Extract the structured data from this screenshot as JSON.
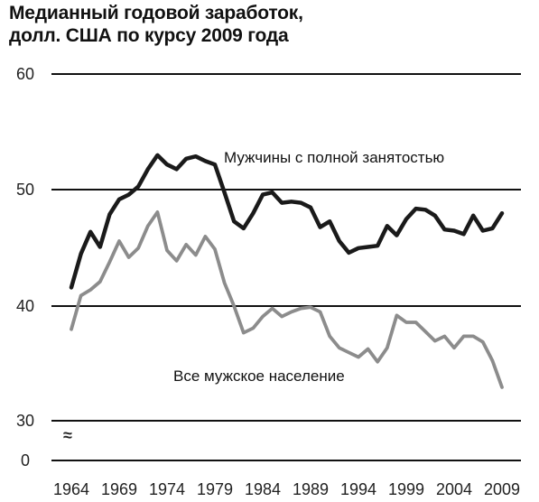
{
  "chart_data": {
    "type": "line",
    "title_line1": "Медианный годовой заработок,",
    "title_line2": "долл. США по курсу 2009 года",
    "xlabel": "",
    "ylabel": "",
    "xlim": [
      1964,
      2009
    ],
    "y_tick_labels": [
      "60",
      "50",
      "40",
      "30",
      "0"
    ],
    "x_tick_labels": [
      "1964",
      "1969",
      "1974",
      "1979",
      "1984",
      "1989",
      "1994",
      "1999",
      "2004",
      "2009"
    ],
    "axis_break_mark": "≈",
    "grid": true,
    "series": [
      {
        "name": "Мужчины с полной занятостью",
        "color": "#1a1a1a",
        "x": [
          1964,
          1965,
          1966,
          1967,
          1968,
          1969,
          1970,
          1971,
          1972,
          1973,
          1974,
          1975,
          1976,
          1977,
          1978,
          1979,
          1980,
          1981,
          1982,
          1983,
          1984,
          1985,
          1986,
          1987,
          1988,
          1989,
          1990,
          1991,
          1992,
          1993,
          1994,
          1995,
          1996,
          1997,
          1998,
          1999,
          2000,
          2001,
          2002,
          2003,
          2004,
          2005,
          2006,
          2007,
          2008,
          2009
        ],
        "values": [
          41.6,
          44.5,
          46.4,
          45.1,
          47.9,
          49.2,
          49.6,
          50.3,
          51.8,
          53.0,
          52.2,
          51.8,
          52.7,
          52.9,
          52.5,
          52.2,
          49.8,
          47.3,
          46.7,
          48.0,
          49.6,
          49.8,
          48.9,
          49.0,
          48.9,
          48.5,
          46.8,
          47.3,
          45.6,
          44.6,
          45.0,
          45.1,
          45.2,
          46.9,
          46.1,
          47.5,
          48.4,
          48.3,
          47.8,
          46.6,
          46.5,
          46.2,
          47.8,
          46.5,
          46.7,
          48.0
        ]
      },
      {
        "name": "Все мужское население",
        "color": "#8c8c8c",
        "x": [
          1964,
          1965,
          1966,
          1967,
          1968,
          1969,
          1970,
          1971,
          1972,
          1973,
          1974,
          1975,
          1976,
          1977,
          1978,
          1979,
          1980,
          1981,
          1982,
          1983,
          1984,
          1985,
          1986,
          1987,
          1988,
          1989,
          1990,
          1991,
          1992,
          1993,
          1994,
          1995,
          1996,
          1997,
          1998,
          1999,
          2000,
          2001,
          2002,
          2003,
          2004,
          2005,
          2006,
          2007,
          2008,
          2009
        ],
        "values": [
          38.0,
          40.9,
          41.4,
          42.1,
          43.8,
          45.6,
          44.2,
          45.0,
          46.9,
          48.1,
          44.8,
          43.9,
          45.3,
          44.4,
          46.0,
          44.9,
          42.0,
          40.0,
          37.7,
          38.1,
          39.1,
          39.8,
          39.1,
          39.5,
          39.8,
          39.9,
          39.5,
          37.4,
          36.4,
          36.0,
          35.6,
          36.3,
          35.2,
          36.4,
          39.2,
          38.6,
          38.6,
          37.8,
          37.0,
          37.4,
          36.4,
          37.4,
          37.4,
          36.9,
          35.3,
          33.0
        ]
      }
    ]
  }
}
